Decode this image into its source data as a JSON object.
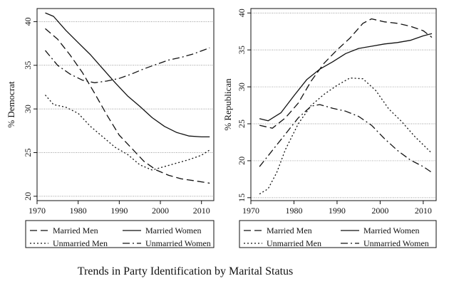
{
  "caption": "Trends in Party Identification by Marital Status",
  "colors": {
    "line": "#111111",
    "grid": "#777777",
    "frame": "#111111",
    "background": "#ffffff"
  },
  "chart_data": [
    {
      "type": "line",
      "ylabel": "% Democrat",
      "xlabel": "",
      "xlim": [
        1970,
        2013
      ],
      "ylim": [
        19.5,
        41.5
      ],
      "xticks": [
        "1970",
        "1980",
        "1990",
        "2000",
        "2010"
      ],
      "yticks": [
        "20",
        "25",
        "30",
        "35",
        "40"
      ],
      "grid": true,
      "legend_position": "bottom",
      "series": [
        {
          "name": "Married Men",
          "style": "dashed",
          "x": [
            1972,
            1975,
            1978,
            1981,
            1984,
            1987,
            1990,
            1993,
            1996,
            1999,
            2002,
            2005,
            2008,
            2012
          ],
          "y": [
            39.2,
            38.0,
            36.2,
            34.2,
            31.8,
            29.3,
            27.0,
            25.5,
            24.0,
            23.0,
            22.4,
            22.0,
            21.8,
            21.5
          ]
        },
        {
          "name": "Married Women",
          "style": "solid",
          "x": [
            1972,
            1974,
            1977,
            1980,
            1983,
            1986,
            1989,
            1992,
            1995,
            1998,
            2001,
            2004,
            2007,
            2010,
            2012
          ],
          "y": [
            41.0,
            40.6,
            39.0,
            37.6,
            36.2,
            34.6,
            33.0,
            31.5,
            30.3,
            29.0,
            28.0,
            27.3,
            26.9,
            26.8,
            26.8
          ]
        },
        {
          "name": "Unmarried Men",
          "style": "dotted",
          "x": [
            1972,
            1974,
            1977,
            1980,
            1983,
            1986,
            1989,
            1992,
            1995,
            1998,
            2001,
            2004,
            2007,
            2010,
            2012
          ],
          "y": [
            31.6,
            30.5,
            30.2,
            29.5,
            28.0,
            26.8,
            25.6,
            24.8,
            23.6,
            23.0,
            23.4,
            23.8,
            24.2,
            24.7,
            25.3
          ]
        },
        {
          "name": "Unmarried Women",
          "style": "dashdot",
          "x": [
            1972,
            1975,
            1978,
            1981,
            1984,
            1987,
            1990,
            1993,
            1996,
            1999,
            2002,
            2005,
            2008,
            2012
          ],
          "y": [
            36.7,
            35.0,
            34.0,
            33.3,
            33.0,
            33.2,
            33.5,
            34.0,
            34.6,
            35.1,
            35.6,
            35.9,
            36.3,
            37.0
          ]
        }
      ]
    },
    {
      "type": "line",
      "ylabel": "% Republican",
      "xlabel": "",
      "xlim": [
        1970,
        2013
      ],
      "ylim": [
        14.6,
        40.6
      ],
      "xticks": [
        "1970",
        "1980",
        "1990",
        "2000",
        "2010"
      ],
      "yticks": [
        "15",
        "20",
        "25",
        "30",
        "35",
        "40"
      ],
      "grid": true,
      "legend_position": "bottom",
      "series": [
        {
          "name": "Married Men",
          "style": "dashed",
          "x": [
            1972,
            1975,
            1978,
            1981,
            1984,
            1987,
            1990,
            1993,
            1996,
            1998,
            2001,
            2004,
            2007,
            2010,
            2012
          ],
          "y": [
            24.8,
            24.4,
            25.8,
            27.8,
            30.8,
            33.2,
            35.0,
            36.6,
            38.6,
            39.2,
            38.8,
            38.6,
            38.2,
            37.6,
            36.7
          ]
        },
        {
          "name": "Married Women",
          "style": "solid",
          "x": [
            1972,
            1974,
            1977,
            1980,
            1983,
            1986,
            1989,
            1992,
            1995,
            1998,
            2001,
            2004,
            2007,
            2010,
            2012
          ],
          "y": [
            25.7,
            25.4,
            26.5,
            28.8,
            31.0,
            32.4,
            33.4,
            34.5,
            35.2,
            35.5,
            35.8,
            36.0,
            36.3,
            36.9,
            37.2
          ]
        },
        {
          "name": "Unmarried Men",
          "style": "dotted",
          "x": [
            1972,
            1974,
            1976,
            1978,
            1981,
            1984,
            1987,
            1990,
            1993,
            1996,
            1999,
            2002,
            2005,
            2008,
            2012
          ],
          "y": [
            15.5,
            16.2,
            18.4,
            21.5,
            25.0,
            27.5,
            29.0,
            30.2,
            31.2,
            31.1,
            29.5,
            27.0,
            25.3,
            23.3,
            21.0
          ]
        },
        {
          "name": "Unmarried Women",
          "style": "dashdot",
          "x": [
            1972,
            1975,
            1978,
            1981,
            1984,
            1986,
            1989,
            1992,
            1995,
            1998,
            2001,
            2004,
            2007,
            2010,
            2012
          ],
          "y": [
            19.2,
            21.4,
            23.6,
            25.8,
            27.4,
            27.6,
            27.1,
            26.7,
            26.0,
            24.8,
            23.0,
            21.4,
            20.1,
            19.2,
            18.4
          ]
        }
      ]
    }
  ]
}
